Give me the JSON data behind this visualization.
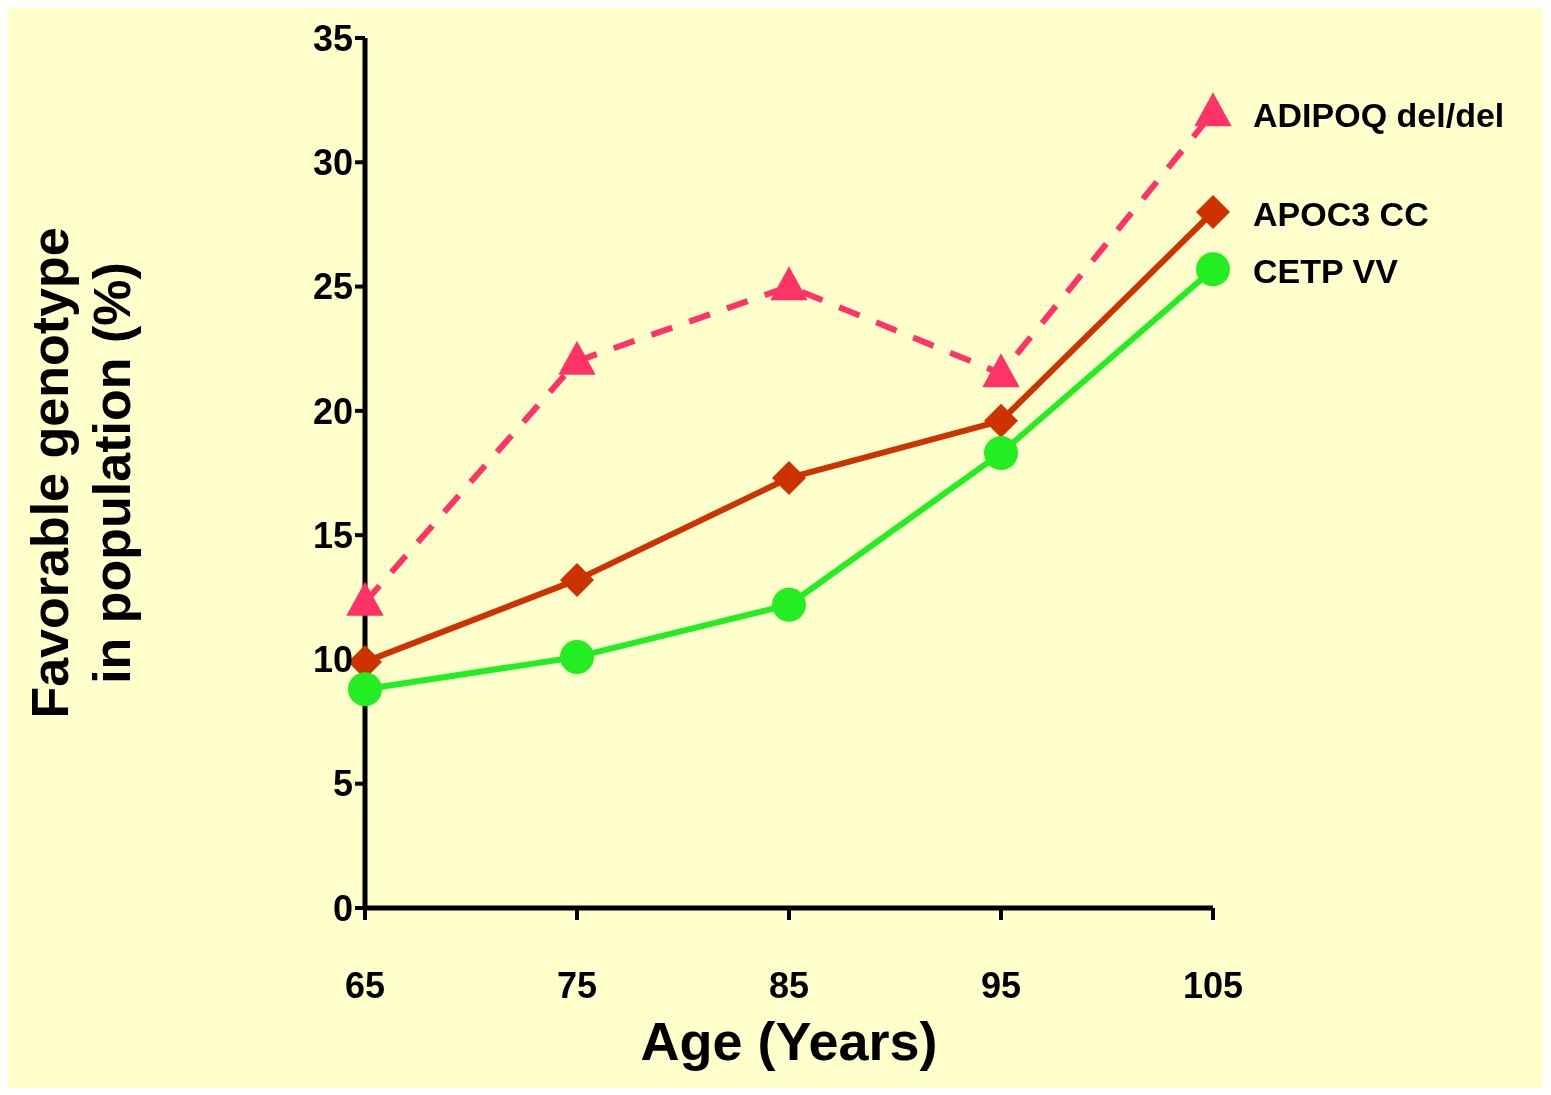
{
  "chart_data": {
    "type": "line",
    "xlabel": "Age (Years)",
    "ylabel": "Favorable genotype in population (%)",
    "categories": [
      "65",
      "75",
      "85",
      "95",
      "105"
    ],
    "ylim": [
      0,
      35
    ],
    "yticks": [
      0,
      5,
      10,
      15,
      20,
      25,
      30,
      35
    ],
    "grid": false,
    "legend": false,
    "series": [
      {
        "name": "ADIPOQ del/del",
        "color": "#ff3366",
        "marker": "triangle",
        "line_style": "dashed",
        "values": [
          12.3,
          22,
          25,
          21.5,
          32
        ]
      },
      {
        "name": "APOC3 CC",
        "color": "#cc3300",
        "marker": "diamond",
        "line_style": "solid",
        "values": [
          9.9,
          13.2,
          17.3,
          19.6,
          28
        ]
      },
      {
        "name": "CETP VV",
        "color": "#22ee22",
        "marker": "circle",
        "line_style": "solid",
        "values": [
          8.8,
          10.1,
          12.2,
          18.3,
          25.7
        ]
      }
    ]
  }
}
